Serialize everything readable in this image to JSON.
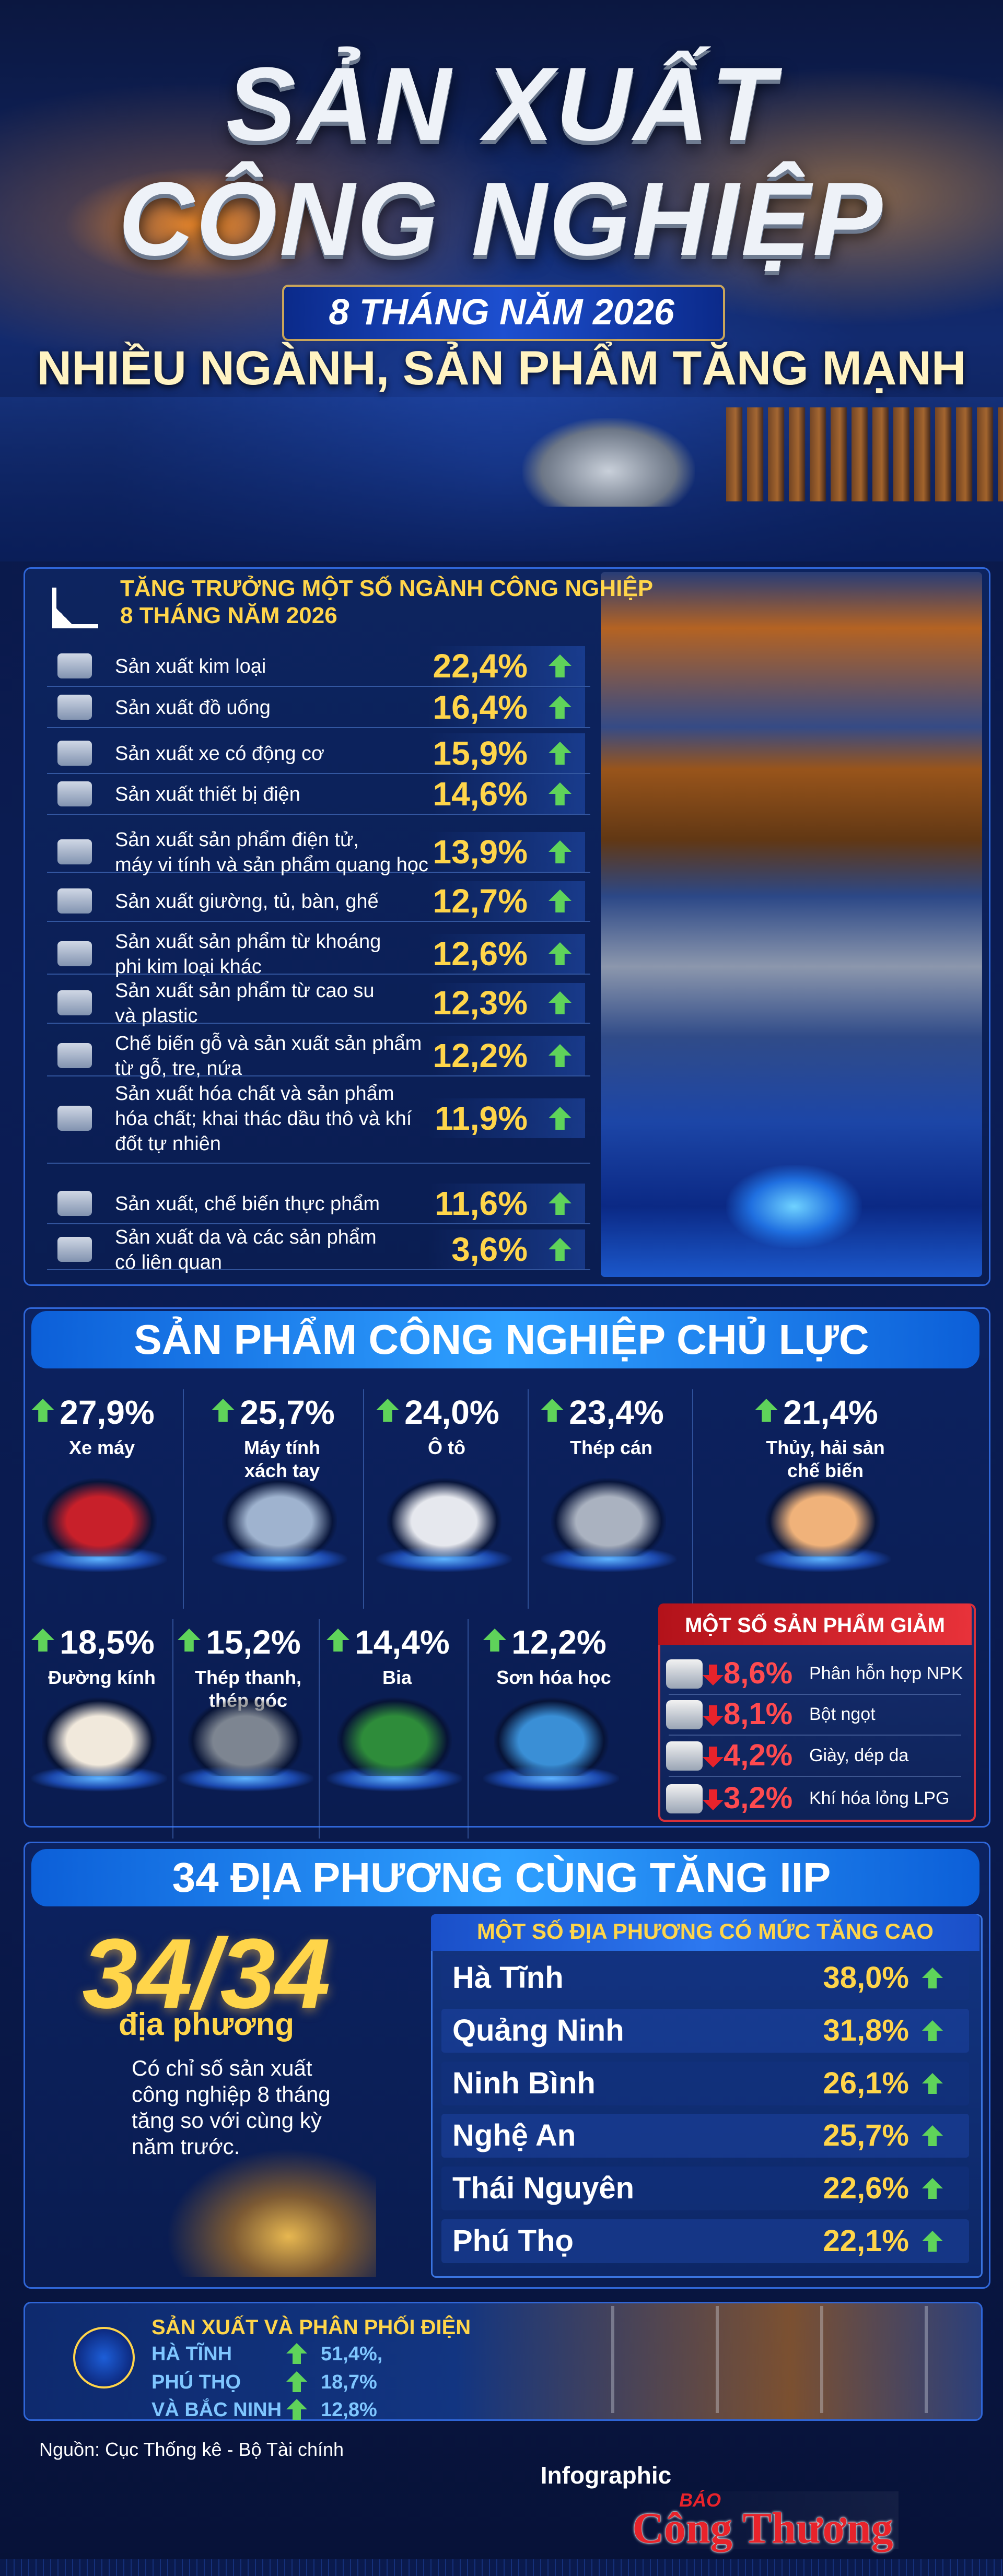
{
  "header": {
    "title_line1": "SẢN XUẤT",
    "title_line2": "CÔNG NGHIỆP",
    "period": "8 THÁNG NĂM 2026",
    "tagline": "NHIỀU NGÀNH, SẢN PHẨM TĂNG MẠNH"
  },
  "industry_growth": {
    "title": "TĂNG TRƯỞNG MỘT SỐ NGÀNH CÔNG NGHIỆP",
    "subtitle": "8 THÁNG NĂM 2026",
    "rows": [
      {
        "label": [
          "Sản xuất kim loại"
        ],
        "value": "22,4%"
      },
      {
        "label": [
          "Sản xuất đồ uống"
        ],
        "value": "16,4%"
      },
      {
        "label": [
          "Sản xuất xe có động cơ"
        ],
        "value": "15,9%"
      },
      {
        "label": [
          "Sản xuất thiết bị điện"
        ],
        "value": "14,6%"
      },
      {
        "label": [
          "Sản xuất sản phẩm điện tử,",
          "máy vi tính và sản phẩm quang học"
        ],
        "value": "13,9%"
      },
      {
        "label": [
          "Sản xuất giường, tủ, bàn, ghế"
        ],
        "value": "12,7%"
      },
      {
        "label": [
          "Sản xuất sản phẩm từ khoáng",
          "phi kim loại khác"
        ],
        "value": "12,6%"
      },
      {
        "label": [
          "Sản xuất sản phẩm từ cao su",
          "và plastic"
        ],
        "value": "12,3%"
      },
      {
        "label": [
          "Chế biến gỗ và sản xuất sản phẩm",
          "từ gỗ, tre, nứa"
        ],
        "value": "12,2%"
      },
      {
        "label": [
          "Sản xuất hóa chất và sản phẩm",
          "hóa chất; khai thác dầu thô và khí",
          "đốt tự nhiên"
        ],
        "value": "11,9%"
      },
      {
        "label": [
          "Sản xuất, chế biến thực phẩm"
        ],
        "value": "11,6%"
      },
      {
        "label": [
          "Sản xuất da và các sản phẩm",
          "có liên quan"
        ],
        "value": "3,6%"
      }
    ]
  },
  "key_products": {
    "title": "SẢN PHẨM CÔNG NGHIỆP CHỦ LỰC",
    "items": [
      {
        "value": "27,9%",
        "label": [
          "Xe máy"
        ]
      },
      {
        "value": "25,7%",
        "label": [
          "Máy tính",
          "xách tay"
        ]
      },
      {
        "value": "24,0%",
        "label": [
          "Ô tô"
        ]
      },
      {
        "value": "23,4%",
        "label": [
          "Thép cán"
        ]
      },
      {
        "value": "21,4%",
        "label": [
          "Thủy, hải sản",
          "chế biến"
        ]
      },
      {
        "value": "18,5%",
        "label": [
          "Đường kính"
        ]
      },
      {
        "value": "15,2%",
        "label": [
          "Thép thanh,",
          "thép góc"
        ]
      },
      {
        "value": "14,4%",
        "label": [
          "Bia"
        ]
      },
      {
        "value": "12,2%",
        "label": [
          "Sơn hóa học"
        ]
      }
    ],
    "decrease": {
      "title": "MỘT SỐ SẢN PHẨM GIẢM",
      "items": [
        {
          "value": "8,6%",
          "label": "Phân hỗn hợp NPK"
        },
        {
          "value": "8,1%",
          "label": "Bột ngọt"
        },
        {
          "value": "4,2%",
          "label": "Giày, dép da"
        },
        {
          "value": "3,2%",
          "label": "Khí hóa lỏng LPG"
        }
      ]
    }
  },
  "localities": {
    "title": "34 ĐỊA PHƯƠNG CÙNG TĂNG IIP",
    "big_number": "34/34",
    "big_label": "địa phương",
    "description": [
      "Có chỉ số sản xuất",
      "công nghiệp 8 tháng",
      "tăng so với cùng kỳ",
      "năm trước."
    ],
    "table_title": "MỘT SỐ ĐỊA PHƯƠNG CÓ MỨC TĂNG CAO",
    "rows": [
      {
        "name": "Hà Tĩnh",
        "value": "38,0%"
      },
      {
        "name": "Quảng Ninh",
        "value": "31,8%"
      },
      {
        "name": "Ninh Bình",
        "value": "26,1%"
      },
      {
        "name": "Nghệ An",
        "value": "25,7%"
      },
      {
        "name": "Thái Nguyên",
        "value": "22,6%"
      },
      {
        "name": "Phú Thọ",
        "value": "22,1%"
      }
    ]
  },
  "electricity": {
    "title": "SẢN XUẤT VÀ PHÂN PHỐI ĐIỆN",
    "rows": [
      {
        "name": "HÀ TĨNH",
        "value": "51,4%,"
      },
      {
        "name": "PHÚ THỌ",
        "value": "18,7%"
      },
      {
        "name": "VÀ BẮC NINH",
        "value": "12,8%"
      }
    ]
  },
  "footer": {
    "source": "Nguồn: Cục Thống kê - Bộ Tài chính",
    "label": "Infographic",
    "logo_small": "BÁO",
    "logo": "Công Thương"
  }
}
